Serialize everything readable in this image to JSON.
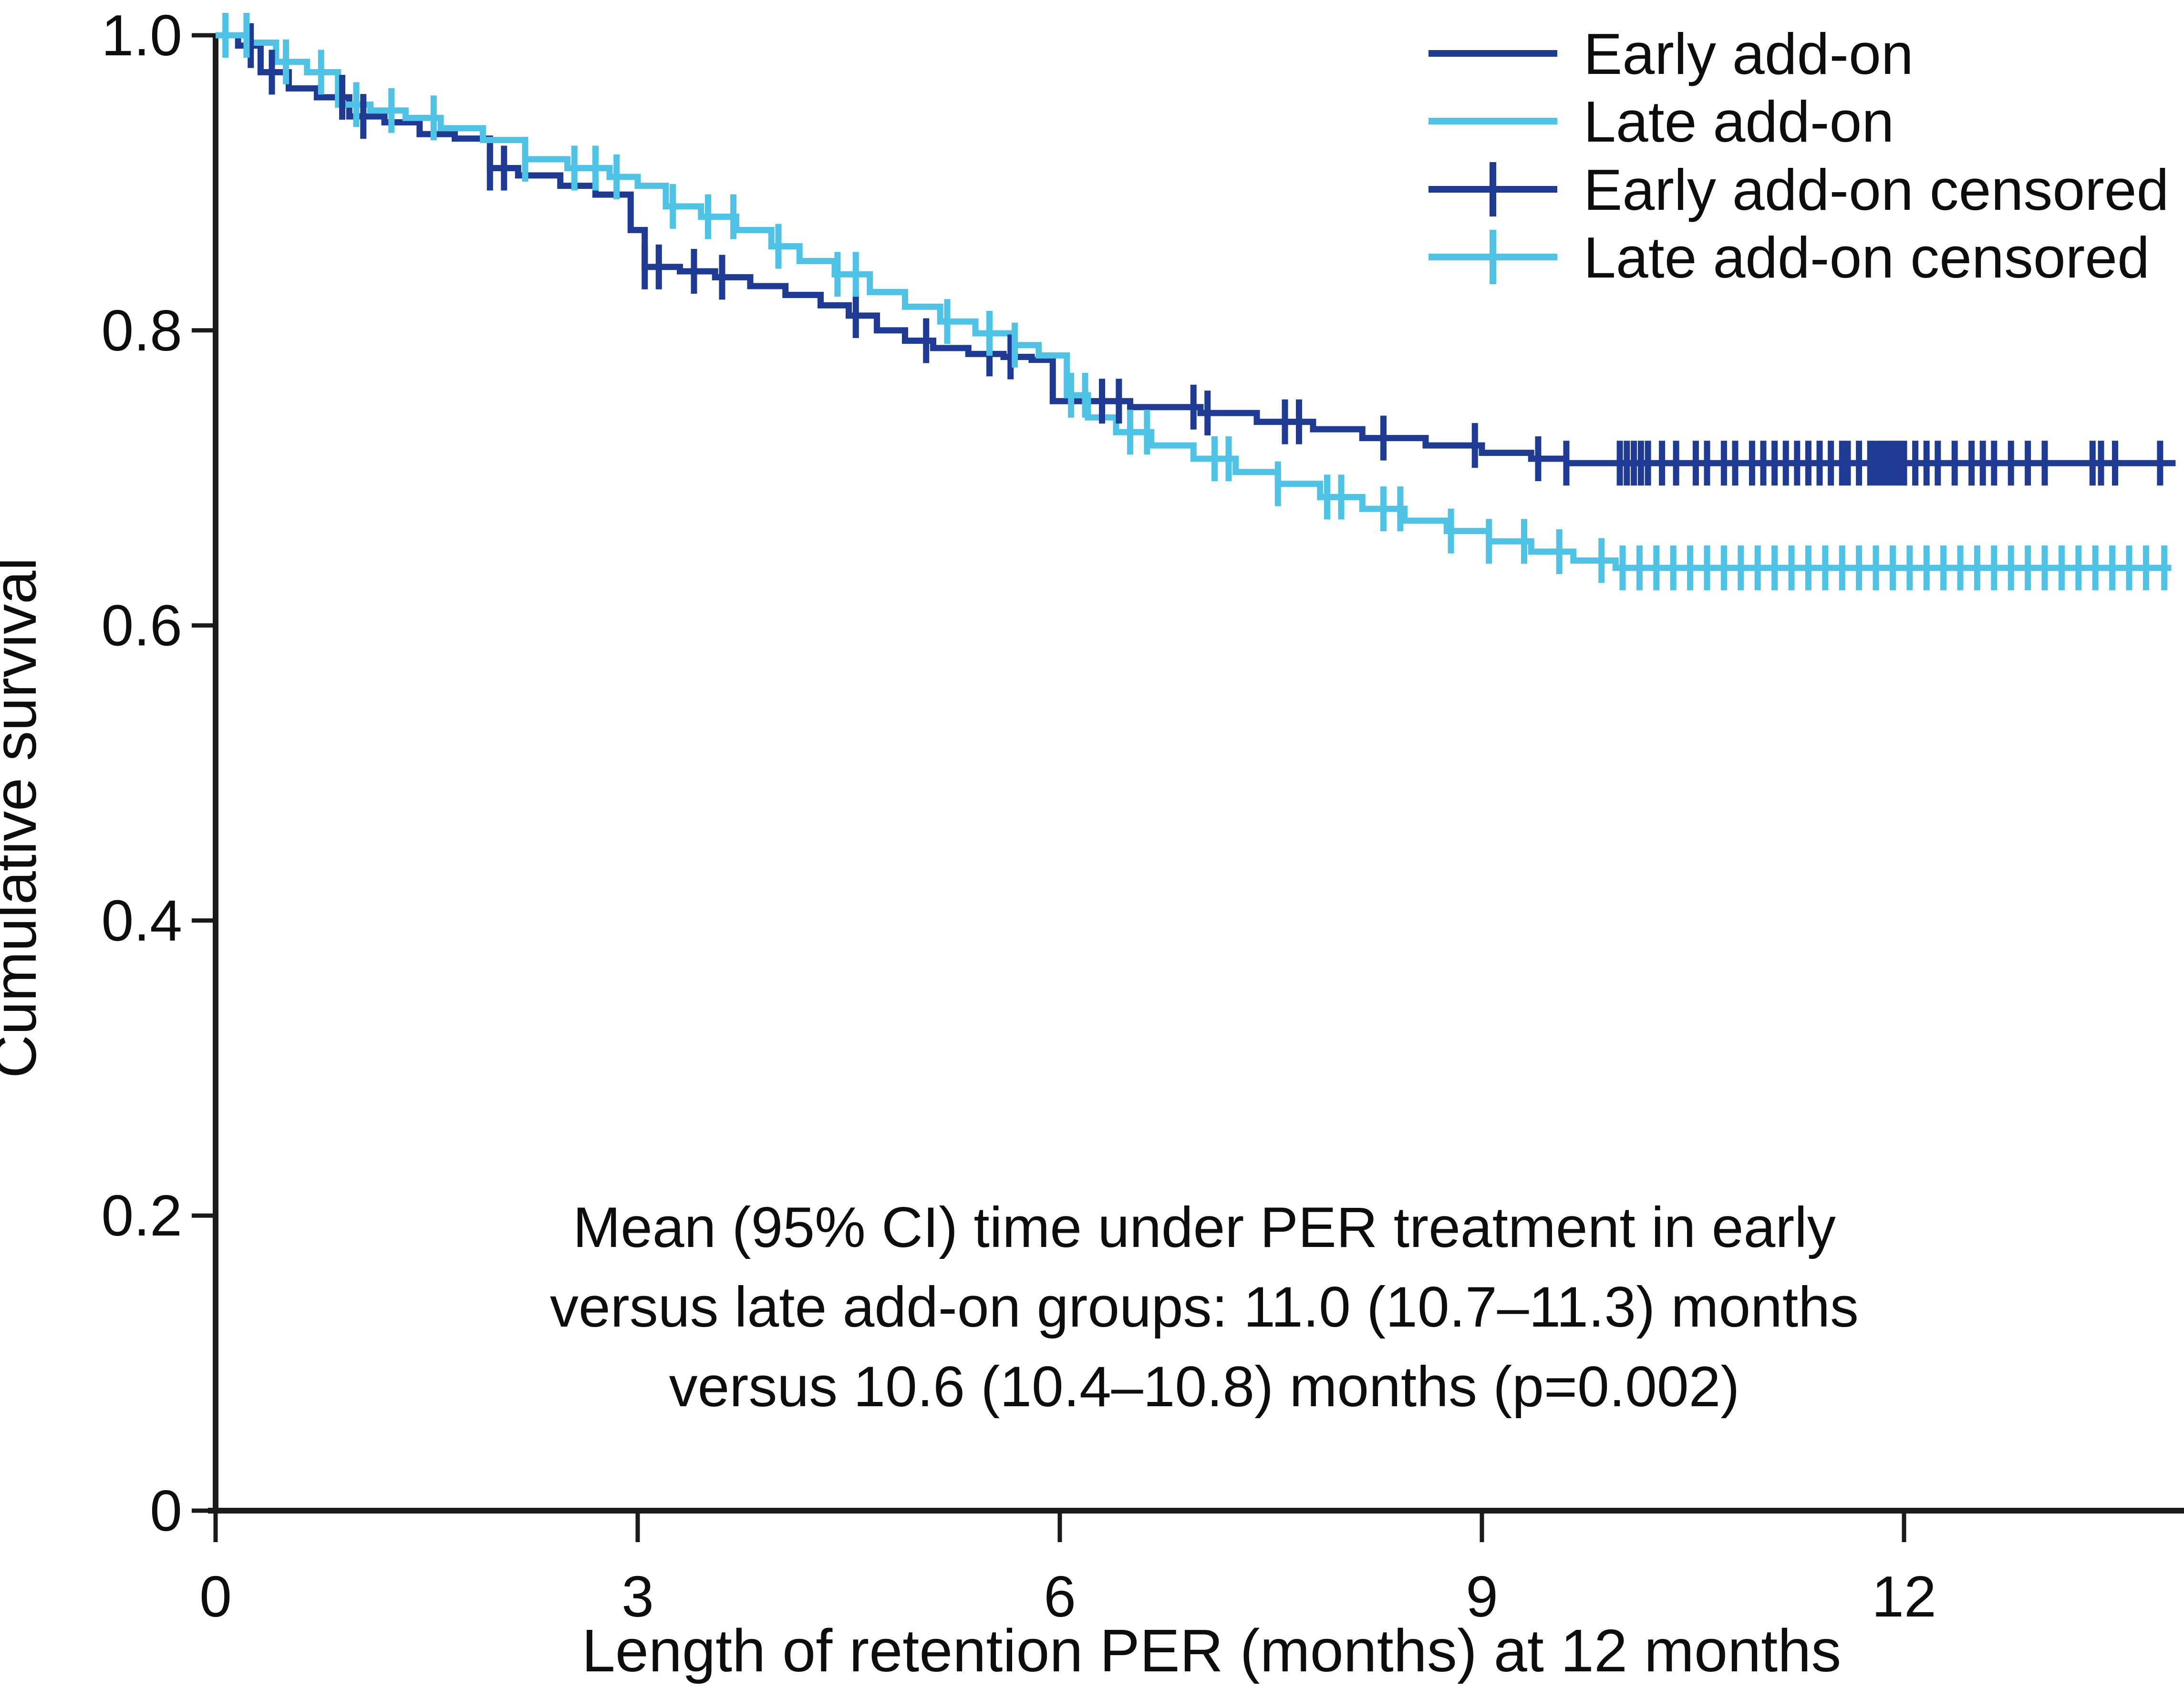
{
  "figure": {
    "background_color": "#ffffff",
    "axis_color": "#1a1a1a",
    "early_color": "#1e3a93",
    "late_color": "#4fc3e6"
  },
  "axes": {
    "x": {
      "label": "Length of retention PER (months) at 12 months",
      "ticks": [
        {
          "value": 0,
          "label": "0"
        },
        {
          "value": 3,
          "label": "3"
        },
        {
          "value": 6,
          "label": "6"
        },
        {
          "value": 9,
          "label": "9"
        },
        {
          "value": 12,
          "label": "12"
        }
      ]
    },
    "y": {
      "label": "Cumulative survival",
      "ticks": [
        {
          "value": 1.0,
          "label": "1.0"
        },
        {
          "value": 0.8,
          "label": "0.8"
        },
        {
          "value": 0.6,
          "label": "0.6"
        },
        {
          "value": 0.4,
          "label": "0.4"
        },
        {
          "value": 0.2,
          "label": "0.2"
        },
        {
          "value": 0.0,
          "label": "0"
        }
      ]
    }
  },
  "legend": {
    "items": [
      {
        "label": "Early add-on",
        "color": "#1e3a93",
        "censored": false
      },
      {
        "label": "Late add-on",
        "color": "#4fc3e6",
        "censored": false
      },
      {
        "label": "Early add-on censored",
        "color": "#1e3a93",
        "censored": true
      },
      {
        "label": "Late add-on censored",
        "color": "#4fc3e6",
        "censored": true
      }
    ]
  },
  "annotation": {
    "line1": "Mean (95% CI) time under PER treatment in early",
    "line2": "versus late add-on groups: 11.0 (10.7–11.3) months",
    "line3": "versus 10.6 (10.4–10.8) months (p=0.002)"
  },
  "chart_data": {
    "type": "line",
    "subtype": "kaplan-meier-step",
    "title": "",
    "xlabel": "Length of retention PER (months) at 12 months",
    "ylabel": "Cumulative survival",
    "xlim": [
      0,
      13.95
    ],
    "ylim": [
      0,
      1.0
    ],
    "x_ticks": [
      0,
      3,
      6,
      9,
      12
    ],
    "y_ticks": [
      0,
      0.2,
      0.4,
      0.6,
      0.8,
      1.0
    ],
    "grid": false,
    "legend_position": "top-right",
    "series": [
      {
        "name": "Early add-on",
        "color": "#1e3a93",
        "points": [
          [
            0,
            1.0
          ],
          [
            0.16,
            0.993
          ],
          [
            0.32,
            0.975
          ],
          [
            0.52,
            0.964
          ],
          [
            0.72,
            0.958
          ],
          [
            0.95,
            0.945
          ],
          [
            1.2,
            0.941
          ],
          [
            1.45,
            0.933
          ],
          [
            1.7,
            0.93
          ],
          [
            1.95,
            0.91
          ],
          [
            2.15,
            0.905
          ],
          [
            2.45,
            0.898
          ],
          [
            2.7,
            0.892
          ],
          [
            2.95,
            0.868
          ],
          [
            3.05,
            0.843
          ],
          [
            3.3,
            0.84
          ],
          [
            3.55,
            0.836
          ],
          [
            3.8,
            0.83
          ],
          [
            4.05,
            0.824
          ],
          [
            4.3,
            0.817
          ],
          [
            4.5,
            0.81
          ],
          [
            4.7,
            0.8
          ],
          [
            4.9,
            0.793
          ],
          [
            5.1,
            0.788
          ],
          [
            5.35,
            0.784
          ],
          [
            5.6,
            0.782
          ],
          [
            5.8,
            0.78
          ],
          [
            5.95,
            0.752
          ],
          [
            6.5,
            0.748
          ],
          [
            7.0,
            0.744
          ],
          [
            7.4,
            0.738
          ],
          [
            7.8,
            0.733
          ],
          [
            8.15,
            0.727
          ],
          [
            8.6,
            0.722
          ],
          [
            9.0,
            0.717
          ],
          [
            9.35,
            0.713
          ],
          [
            9.6,
            0.71
          ],
          [
            13.93,
            0.71
          ]
        ],
        "censor_months": [
          0.25,
          0.4,
          0.9,
          1.05,
          1.95,
          2.05,
          3.05,
          3.15,
          3.4,
          3.6,
          4.55,
          5.05,
          5.5,
          5.65,
          6.3,
          6.42,
          6.95,
          7.05,
          7.6,
          7.7,
          8.3,
          8.95,
          9.4,
          9.6,
          9.98,
          10.03,
          10.08,
          10.13,
          10.18,
          10.28,
          10.38,
          10.52,
          10.6,
          10.72,
          10.8,
          10.92,
          11.0,
          11.08,
          11.16,
          11.24,
          11.32,
          11.4,
          11.48,
          11.56,
          11.6,
          11.68,
          11.76,
          11.8,
          11.84,
          11.88,
          11.92,
          11.96,
          12.0,
          12.08,
          12.16,
          12.24,
          12.36,
          12.48,
          12.56,
          12.64,
          12.76,
          12.88,
          13.0,
          13.34,
          13.4,
          13.5,
          13.82
        ]
      },
      {
        "name": "Late add-on",
        "color": "#4fc3e6",
        "points": [
          [
            0,
            1.0
          ],
          [
            0.24,
            0.995
          ],
          [
            0.43,
            0.982
          ],
          [
            0.65,
            0.975
          ],
          [
            0.87,
            0.953
          ],
          [
            1.1,
            0.949
          ],
          [
            1.35,
            0.944
          ],
          [
            1.6,
            0.937
          ],
          [
            1.9,
            0.929
          ],
          [
            2.2,
            0.916
          ],
          [
            2.5,
            0.91
          ],
          [
            2.8,
            0.904
          ],
          [
            3.0,
            0.898
          ],
          [
            3.2,
            0.884
          ],
          [
            3.45,
            0.877
          ],
          [
            3.7,
            0.868
          ],
          [
            3.95,
            0.857
          ],
          [
            4.15,
            0.847
          ],
          [
            4.4,
            0.838
          ],
          [
            4.65,
            0.826
          ],
          [
            4.9,
            0.816
          ],
          [
            5.15,
            0.806
          ],
          [
            5.4,
            0.798
          ],
          [
            5.65,
            0.79
          ],
          [
            5.85,
            0.783
          ],
          [
            6.05,
            0.756
          ],
          [
            6.2,
            0.741
          ],
          [
            6.4,
            0.731
          ],
          [
            6.65,
            0.722
          ],
          [
            6.95,
            0.713
          ],
          [
            7.25,
            0.704
          ],
          [
            7.55,
            0.696
          ],
          [
            7.85,
            0.687
          ],
          [
            8.15,
            0.679
          ],
          [
            8.45,
            0.671
          ],
          [
            8.75,
            0.664
          ],
          [
            9.05,
            0.657
          ],
          [
            9.35,
            0.65
          ],
          [
            9.65,
            0.644
          ],
          [
            9.95,
            0.639
          ],
          [
            13.9,
            0.639
          ]
        ],
        "censor_months": [
          0.07,
          0.22,
          0.5,
          0.75,
          1.0,
          1.25,
          1.55,
          2.2,
          2.55,
          2.7,
          2.85,
          3.25,
          3.5,
          3.68,
          4.0,
          4.42,
          4.55,
          5.2,
          5.5,
          5.68,
          6.08,
          6.18,
          6.5,
          6.62,
          7.1,
          7.2,
          7.55,
          7.9,
          8.0,
          8.3,
          8.42,
          8.78,
          9.05,
          9.3,
          9.55,
          9.85,
          10.0,
          10.12,
          10.24,
          10.36,
          10.48,
          10.6,
          10.72,
          10.84,
          10.96,
          11.08,
          11.2,
          11.32,
          11.44,
          11.56,
          11.68,
          11.8,
          11.92,
          12.04,
          12.16,
          12.28,
          12.4,
          12.52,
          12.64,
          12.76,
          12.88,
          13.0,
          13.12,
          13.24,
          13.36,
          13.48,
          13.6,
          13.72,
          13.85
        ]
      }
    ]
  }
}
